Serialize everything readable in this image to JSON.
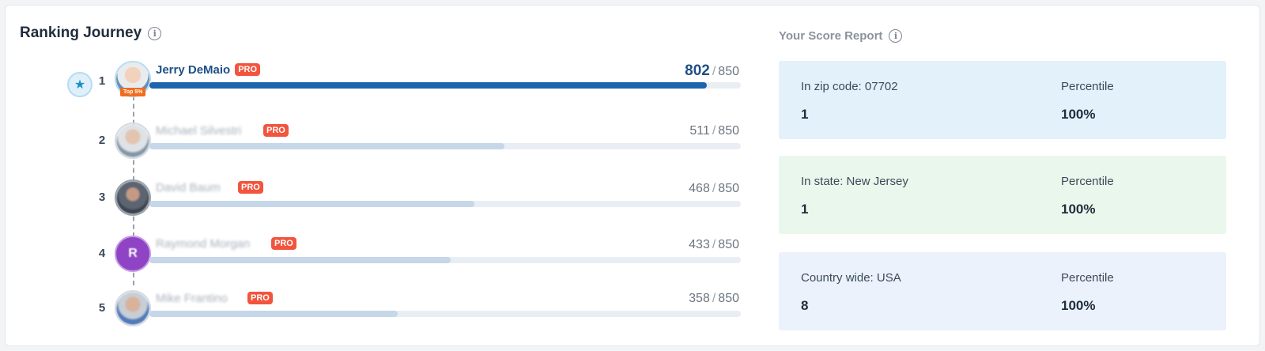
{
  "ranking": {
    "title": "Ranking Journey",
    "top_badge": "Top 5%",
    "pro_label": "PRO",
    "max_score": "850",
    "rows": [
      {
        "rank": "1",
        "name": "Jerry DeMaio",
        "score": "802",
        "fraction": 0.943,
        "highlight": true,
        "avatar": "photo"
      },
      {
        "rank": "2",
        "name": "Michael Silvestri",
        "score": "511",
        "fraction": 0.6,
        "highlight": false,
        "avatar": "photo"
      },
      {
        "rank": "3",
        "name": "David Baum",
        "score": "468",
        "fraction": 0.55,
        "highlight": false,
        "avatar": "photo"
      },
      {
        "rank": "4",
        "name": "Raymond Morgan",
        "score": "433",
        "fraction": 0.51,
        "highlight": false,
        "avatar": "letter",
        "initial": "R"
      },
      {
        "rank": "5",
        "name": "Mike Frantino",
        "score": "358",
        "fraction": 0.42,
        "highlight": false,
        "avatar": "photo"
      }
    ]
  },
  "report": {
    "title": "Your Score Report",
    "panels": [
      {
        "label": "In zip code: 07702",
        "value": "1",
        "percentile_label": "Percentile",
        "percentile": "100%"
      },
      {
        "label": "In state: New Jersey",
        "value": "1",
        "percentile_label": "Percentile",
        "percentile": "100%"
      },
      {
        "label": "Country wide: USA",
        "value": "8",
        "percentile_label": "Percentile",
        "percentile": "100%"
      }
    ]
  },
  "colors": {
    "lead_bar": "#1c64ad",
    "other_bar": "#c5d7e8",
    "pro_badge": "#f2543d",
    "zip_panel": "#e3f1fa",
    "state_panel": "#eaf7ec",
    "country_panel": "#ebf2fb"
  },
  "icons": {
    "info": "info-circle-icon",
    "leader": "star-icon"
  }
}
